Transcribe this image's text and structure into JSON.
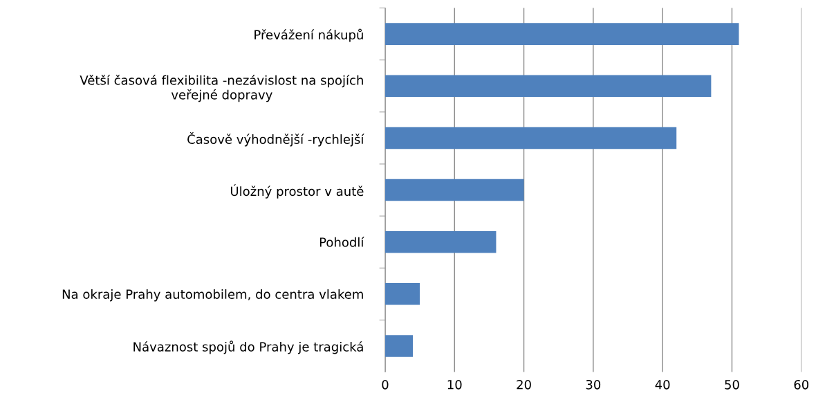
{
  "chart_data": {
    "type": "bar",
    "orientation": "horizontal",
    "categories": [
      "Převážení nákupů",
      "Větší časová flexibilita -nezávislost na spojích\nveřejné dopravy",
      "Časově výhodnější -rychlejší",
      "Úložný prostor v autě",
      "Pohodlí",
      "Na okraje Prahy automobilem, do centra vlakem",
      "Návaznost spojů do Prahy je tragická"
    ],
    "values": [
      51,
      47,
      42,
      20,
      16,
      5,
      4
    ],
    "color": "#4f81bd",
    "xlim": [
      0,
      60
    ],
    "xticks": [
      0,
      10,
      20,
      30,
      40,
      50,
      60
    ],
    "grid": "x",
    "legend": false
  }
}
